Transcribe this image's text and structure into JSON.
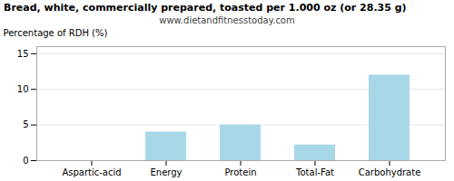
{
  "chart_data": {
    "type": "bar",
    "title": "Bread, white, commercially prepared, toasted per 1.000 oz (or 28.35 g)",
    "subtitle": "www.dietandfitnesstoday.com",
    "categories": [
      "Aspartic-acid",
      "Energy",
      "Protein",
      "Total-Fat",
      "Carbohydrate"
    ],
    "values": [
      0.0,
      4.0,
      5.0,
      2.2,
      12.0
    ],
    "color": "#a8d8e8",
    "ylabel": "Percentage of RDH (%)",
    "ylim": [
      0,
      16
    ],
    "yticks": [
      0,
      5,
      10,
      15
    ],
    "grid": true
  }
}
